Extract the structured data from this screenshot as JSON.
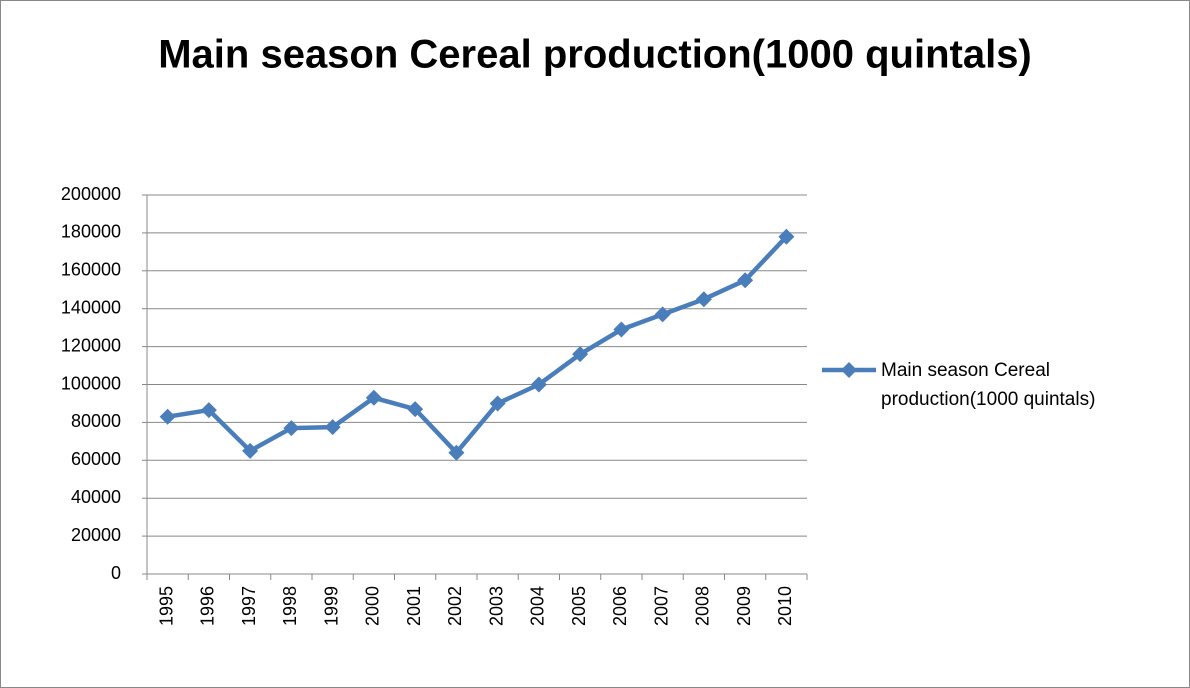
{
  "chart_data": {
    "type": "line",
    "title": "Main season Cereal production(1000 quintals)",
    "categories": [
      "1995",
      "1996",
      "1997",
      "1998",
      "1999",
      "2000",
      "2001",
      "2002",
      "2003",
      "2004",
      "2005",
      "2006",
      "2007",
      "2008",
      "2009",
      "2010"
    ],
    "series": [
      {
        "name": "Main season Cereal production(1000 quintals)",
        "color": "#4a7ebb",
        "values": [
          83000,
          86500,
          65000,
          77000,
          77500,
          93000,
          87000,
          64000,
          90000,
          100000,
          116000,
          129000,
          137000,
          145000,
          155000,
          178000
        ]
      }
    ],
    "ylim": [
      0,
      200000
    ],
    "yticks": [
      0,
      20000,
      40000,
      60000,
      80000,
      100000,
      120000,
      140000,
      160000,
      180000,
      200000
    ],
    "grid": true,
    "legend": "right"
  }
}
